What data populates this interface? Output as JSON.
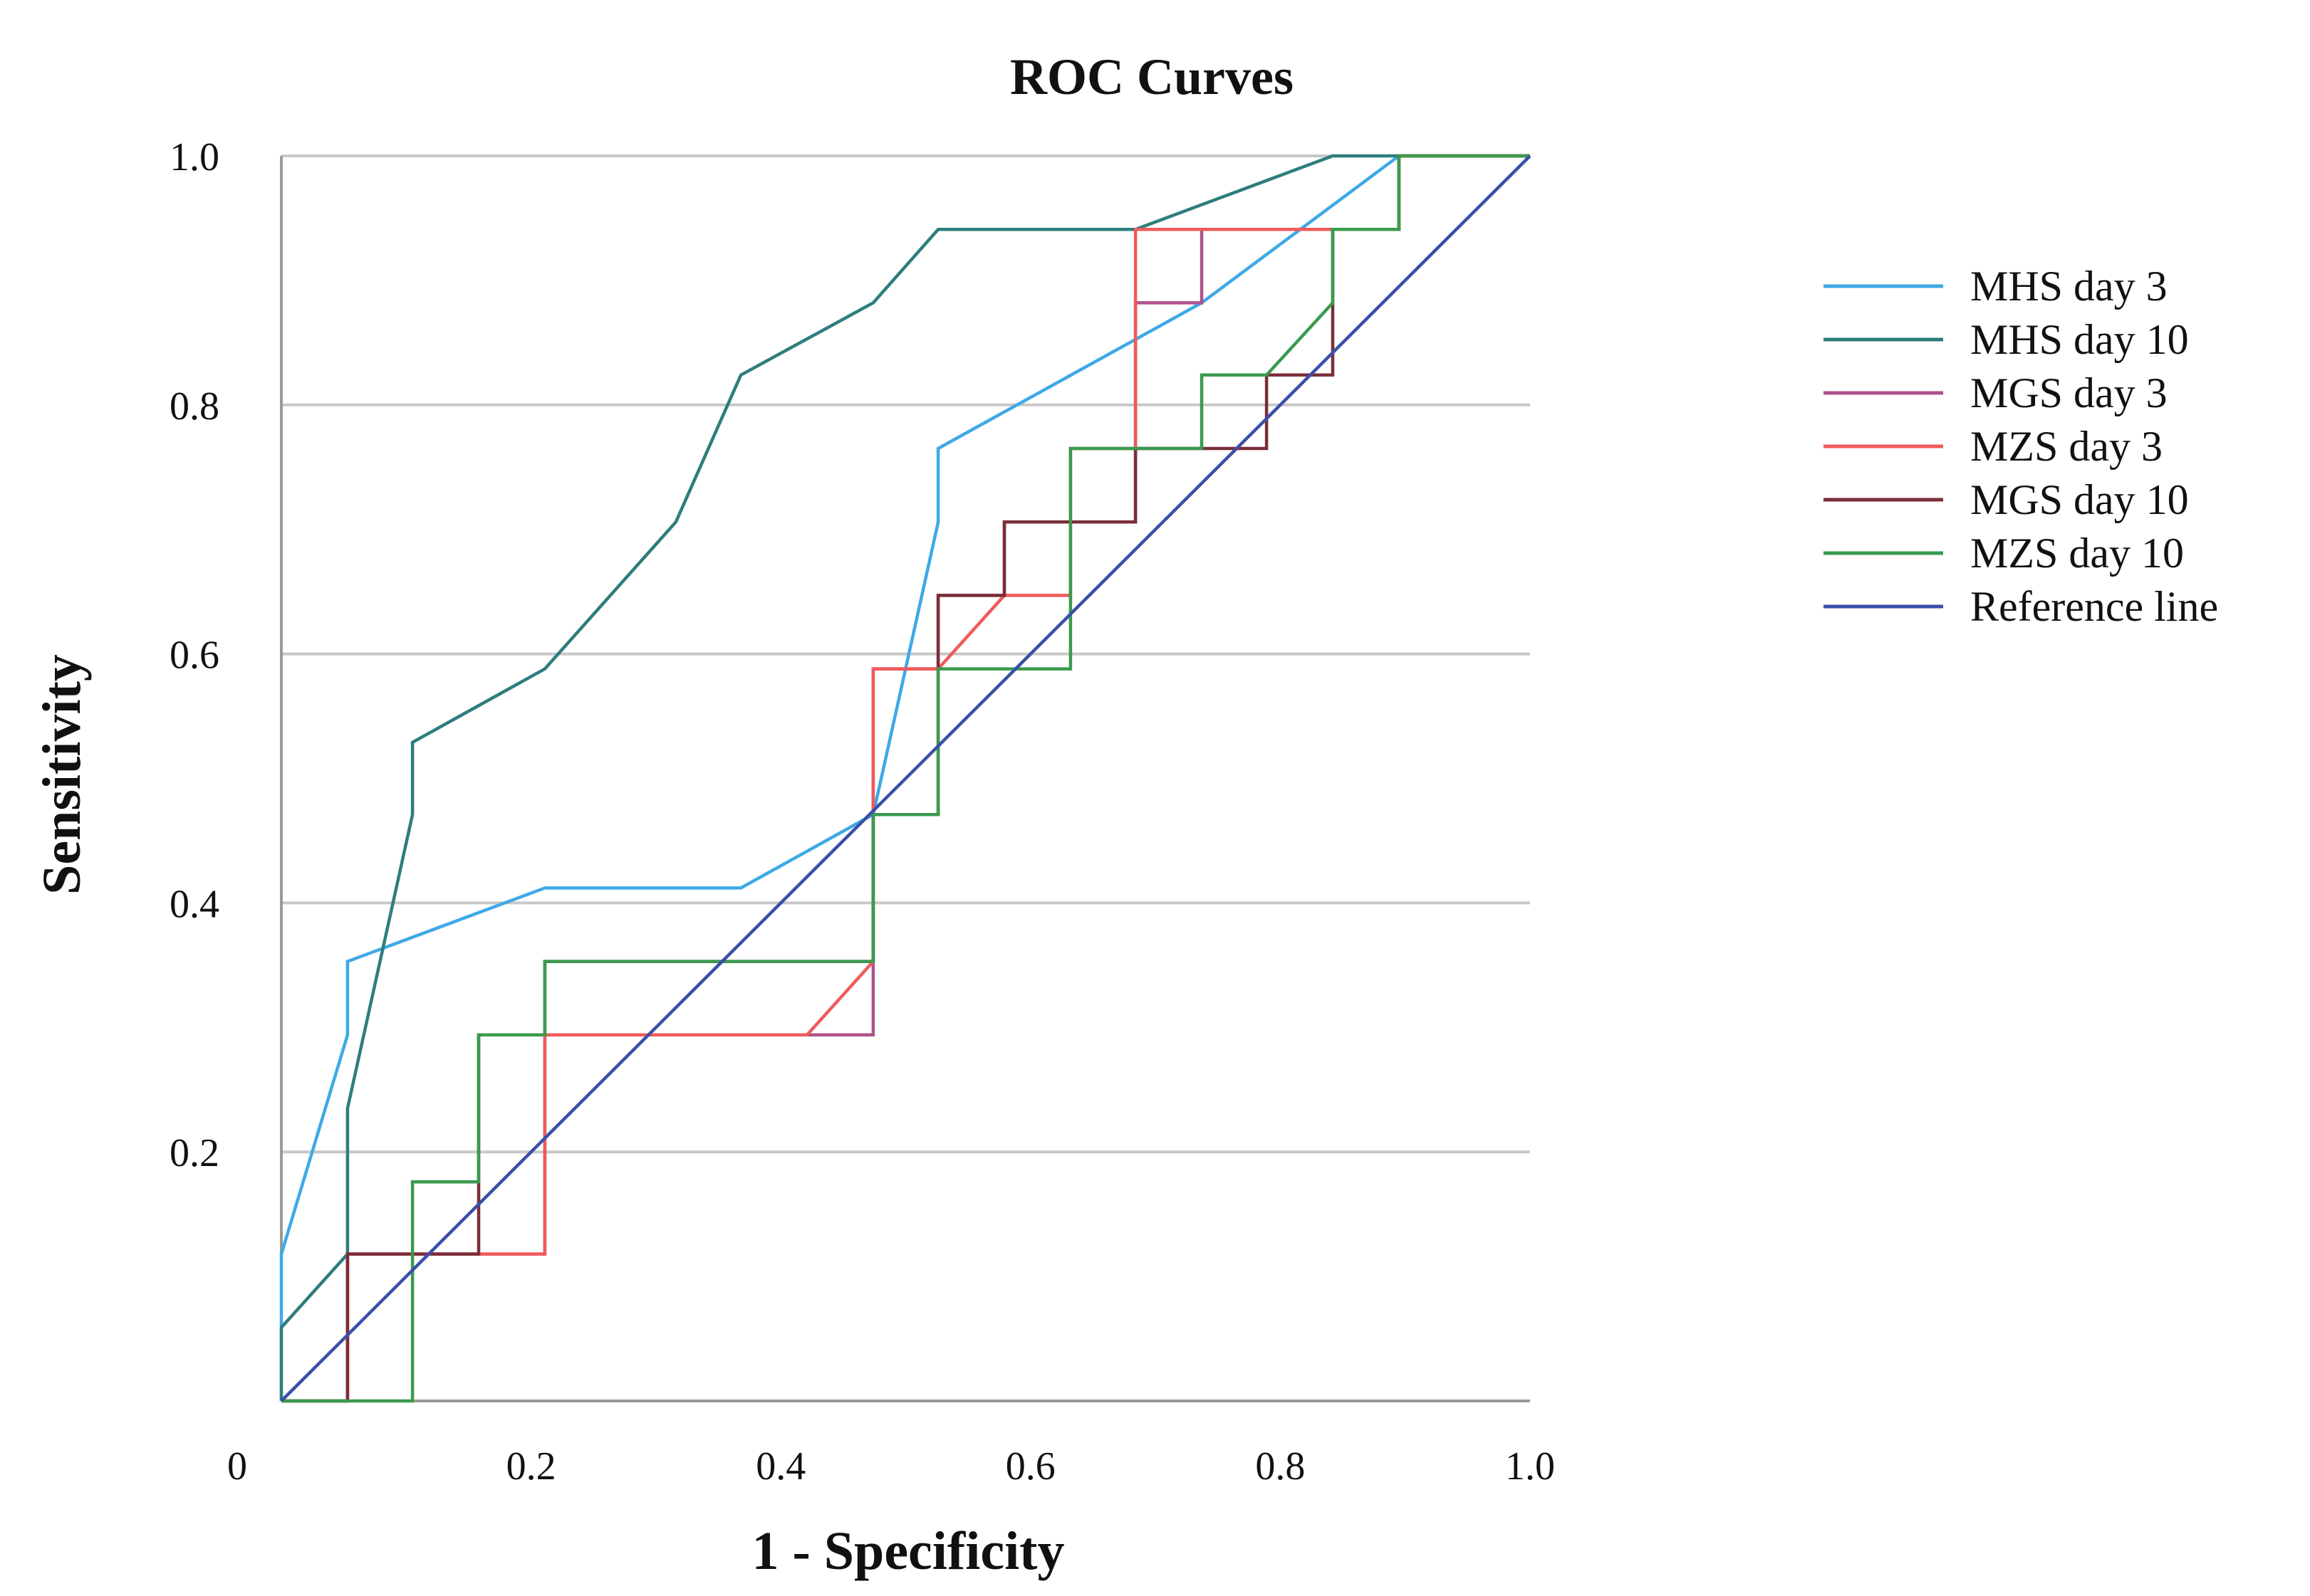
{
  "chart_data": {
    "type": "line",
    "title": "ROC Curves",
    "xlabel": "1 - Specificity",
    "ylabel": "Sensitivity",
    "xlim": [
      0,
      1
    ],
    "ylim": [
      0,
      1
    ],
    "grid": true,
    "legend_position": "right",
    "x_ticks": [
      {
        "value": 0,
        "label": "0"
      },
      {
        "value": 0.2,
        "label": "0.2"
      },
      {
        "value": 0.4,
        "label": "0.4"
      },
      {
        "value": 0.6,
        "label": "0.6"
      },
      {
        "value": 0.8,
        "label": "0.8"
      },
      {
        "value": 1.0,
        "label": "1.0"
      }
    ],
    "y_ticks": [
      {
        "value": 0.2,
        "label": "0.2"
      },
      {
        "value": 0.4,
        "label": "0.4"
      },
      {
        "value": 0.6,
        "label": "0.6"
      },
      {
        "value": 0.8,
        "label": "0.8"
      },
      {
        "value": 1.0,
        "label": "1.0"
      }
    ],
    "series": [
      {
        "name": "MHS day 3",
        "color": "#3fa9e6",
        "points": [
          [
            0,
            0
          ],
          [
            0,
            0.118
          ],
          [
            0.053,
            0.294
          ],
          [
            0.053,
            0.353
          ],
          [
            0.211,
            0.412
          ],
          [
            0.368,
            0.412
          ],
          [
            0.474,
            0.471
          ],
          [
            0.526,
            0.706
          ],
          [
            0.526,
            0.765
          ],
          [
            0.737,
            0.882
          ],
          [
            0.895,
            1.0
          ],
          [
            1,
            1
          ]
        ]
      },
      {
        "name": "MHS day 10",
        "color": "#2e7d7d",
        "points": [
          [
            0,
            0
          ],
          [
            0,
            0.059
          ],
          [
            0.053,
            0.118
          ],
          [
            0.053,
            0.235
          ],
          [
            0.105,
            0.471
          ],
          [
            0.105,
            0.529
          ],
          [
            0.211,
            0.588
          ],
          [
            0.316,
            0.706
          ],
          [
            0.368,
            0.824
          ],
          [
            0.474,
            0.882
          ],
          [
            0.526,
            0.941
          ],
          [
            0.684,
            0.941
          ],
          [
            0.842,
            1.0
          ],
          [
            1,
            1
          ]
        ]
      },
      {
        "name": "MGS day 3",
        "color": "#b0528a",
        "points": [
          [
            0,
            0
          ],
          [
            0.053,
            0
          ],
          [
            0.053,
            0.118
          ],
          [
            0.211,
            0.118
          ],
          [
            0.211,
            0.294
          ],
          [
            0.474,
            0.294
          ],
          [
            0.474,
            0.588
          ],
          [
            0.526,
            0.588
          ],
          [
            0.526,
            0.647
          ],
          [
            0.579,
            0.647
          ],
          [
            0.579,
            0.706
          ],
          [
            0.684,
            0.706
          ],
          [
            0.684,
            0.882
          ],
          [
            0.737,
            0.882
          ],
          [
            0.737,
            0.941
          ],
          [
            0.895,
            0.941
          ],
          [
            0.895,
            1.0
          ],
          [
            1,
            1
          ]
        ]
      },
      {
        "name": "MZS day 3",
        "color": "#ef5a5a",
        "points": [
          [
            0,
            0
          ],
          [
            0.053,
            0
          ],
          [
            0.053,
            0.118
          ],
          [
            0.211,
            0.118
          ],
          [
            0.211,
            0.294
          ],
          [
            0.421,
            0.294
          ],
          [
            0.474,
            0.353
          ],
          [
            0.474,
            0.588
          ],
          [
            0.526,
            0.588
          ],
          [
            0.579,
            0.647
          ],
          [
            0.632,
            0.647
          ],
          [
            0.632,
            0.765
          ],
          [
            0.684,
            0.765
          ],
          [
            0.684,
            0.941
          ],
          [
            0.895,
            0.941
          ],
          [
            0.895,
            1.0
          ],
          [
            1,
            1
          ]
        ]
      },
      {
        "name": "MGS day 10",
        "color": "#7a2e3a",
        "points": [
          [
            0,
            0
          ],
          [
            0.053,
            0
          ],
          [
            0.053,
            0.118
          ],
          [
            0.158,
            0.118
          ],
          [
            0.158,
            0.294
          ],
          [
            0.211,
            0.294
          ],
          [
            0.211,
            0.353
          ],
          [
            0.474,
            0.353
          ],
          [
            0.474,
            0.471
          ],
          [
            0.526,
            0.471
          ],
          [
            0.526,
            0.647
          ],
          [
            0.579,
            0.647
          ],
          [
            0.579,
            0.706
          ],
          [
            0.684,
            0.706
          ],
          [
            0.684,
            0.765
          ],
          [
            0.789,
            0.765
          ],
          [
            0.789,
            0.824
          ],
          [
            0.842,
            0.824
          ],
          [
            0.842,
            0.941
          ],
          [
            0.895,
            0.941
          ],
          [
            0.895,
            1.0
          ],
          [
            1,
            1
          ]
        ]
      },
      {
        "name": "MZS day 10",
        "color": "#3a9a4e",
        "points": [
          [
            0,
            0
          ],
          [
            0.105,
            0
          ],
          [
            0.105,
            0.176
          ],
          [
            0.158,
            0.176
          ],
          [
            0.158,
            0.294
          ],
          [
            0.211,
            0.294
          ],
          [
            0.211,
            0.353
          ],
          [
            0.474,
            0.353
          ],
          [
            0.474,
            0.471
          ],
          [
            0.526,
            0.471
          ],
          [
            0.526,
            0.588
          ],
          [
            0.632,
            0.588
          ],
          [
            0.632,
            0.765
          ],
          [
            0.737,
            0.765
          ],
          [
            0.737,
            0.824
          ],
          [
            0.789,
            0.824
          ],
          [
            0.842,
            0.882
          ],
          [
            0.842,
            0.941
          ],
          [
            0.895,
            0.941
          ],
          [
            0.895,
            1.0
          ],
          [
            1,
            1
          ]
        ]
      },
      {
        "name": "Reference line",
        "color": "#3a4fa8",
        "points": [
          [
            0,
            0
          ],
          [
            1,
            1
          ]
        ]
      }
    ]
  }
}
